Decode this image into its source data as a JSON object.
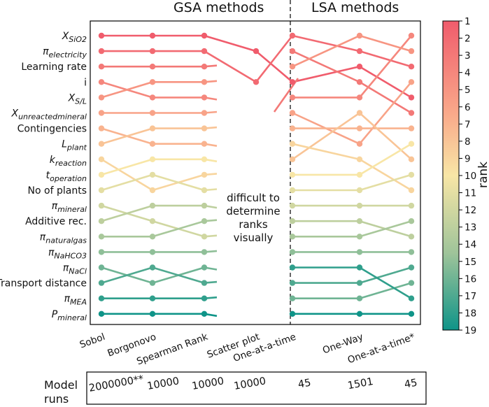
{
  "chart_data": {
    "type": "line",
    "group_labels": {
      "gsa": "GSA methods",
      "lsa": "LSA methods"
    },
    "methods": [
      "Sobol",
      "Borgonovo",
      "Spearman Rank",
      "Scatter plot",
      "One-at-a-time",
      "One-Way",
      "One-at-a-time*"
    ],
    "parameters": [
      {
        "label": "X",
        "sub": "SiO2"
      },
      {
        "label": "π",
        "sub": "electricity"
      },
      {
        "label": "Learning rate",
        "sub": ""
      },
      {
        "label": "i",
        "sub": ""
      },
      {
        "label": "X",
        "sub": "S/L"
      },
      {
        "label": "X",
        "sub": "unreactedmineral"
      },
      {
        "label": "Contingencies",
        "sub": ""
      },
      {
        "label": "L",
        "sub": "plant"
      },
      {
        "label": "k",
        "sub": "reaction"
      },
      {
        "label": "t",
        "sub": "operation"
      },
      {
        "label": "No of plants",
        "sub": ""
      },
      {
        "label": "π",
        "sub": "mineral"
      },
      {
        "label": "Additive rec.",
        "sub": ""
      },
      {
        "label": "π",
        "sub": "naturalgas"
      },
      {
        "label": "π",
        "sub": "NaHCO3"
      },
      {
        "label": "π",
        "sub": "NaCl"
      },
      {
        "label": "Transport distance",
        "sub": ""
      },
      {
        "label": "π",
        "sub": "MEA"
      },
      {
        "label": "P",
        "sub": "mineral"
      }
    ],
    "gsa_ranks": [
      [
        1,
        1,
        1
      ],
      [
        2,
        2,
        2
      ],
      [
        3,
        3,
        3
      ],
      [
        4,
        5,
        5
      ],
      [
        5,
        4,
        4
      ],
      [
        6,
        6,
        6
      ],
      [
        7,
        8,
        8
      ],
      [
        8,
        7,
        7
      ],
      [
        9,
        11,
        10
      ],
      [
        10,
        9,
        9
      ],
      [
        11,
        10,
        11
      ],
      [
        12,
        13,
        14
      ],
      [
        13,
        12,
        12
      ],
      [
        14,
        14,
        13
      ],
      [
        15,
        15,
        15
      ],
      [
        16,
        17,
        16
      ],
      [
        17,
        16,
        17
      ],
      [
        18,
        18,
        18
      ],
      [
        19,
        19,
        19
      ]
    ],
    "scatter_plot_ranks": {
      "0": 2,
      "1": 4
    },
    "lsa_ranks": [
      [
        4,
        3,
        5
      ],
      [
        1,
        2,
        3
      ],
      [
        2,
        4,
        6
      ],
      [
        5,
        5,
        1
      ],
      [
        3,
        1,
        2
      ],
      [
        6,
        8,
        4
      ],
      [
        7,
        7,
        7
      ],
      [
        9,
        6,
        9
      ],
      [
        8,
        9,
        11
      ],
      [
        10,
        10,
        8
      ],
      [
        11,
        11,
        10
      ],
      [
        12,
        12,
        12
      ],
      [
        13,
        13,
        14
      ],
      [
        14,
        14,
        13
      ],
      [
        15,
        15,
        15
      ],
      [
        18,
        18,
        17
      ],
      [
        17,
        17,
        16
      ],
      [
        16,
        16,
        18
      ],
      [
        19,
        19,
        19
      ]
    ],
    "annotation": [
      "difficult to",
      "determine",
      "ranks",
      "visually"
    ],
    "colorbar": {
      "label": "rank",
      "ticks": [
        "1",
        "2",
        "3",
        "4",
        "5",
        "6",
        "7",
        "8",
        "9",
        "10",
        "11",
        "12",
        "13",
        "14",
        "15",
        "16",
        "17",
        "18",
        "19"
      ]
    },
    "model_runs_label": [
      "Model",
      "runs"
    ],
    "model_runs": [
      "2000000**",
      "10000",
      "10000",
      "10000",
      "45",
      "1501",
      "45"
    ],
    "colors": {
      "high_rank": "#f06471",
      "mid_rank": "#f8e9a6",
      "low_rank": "#1a9a8b"
    }
  }
}
